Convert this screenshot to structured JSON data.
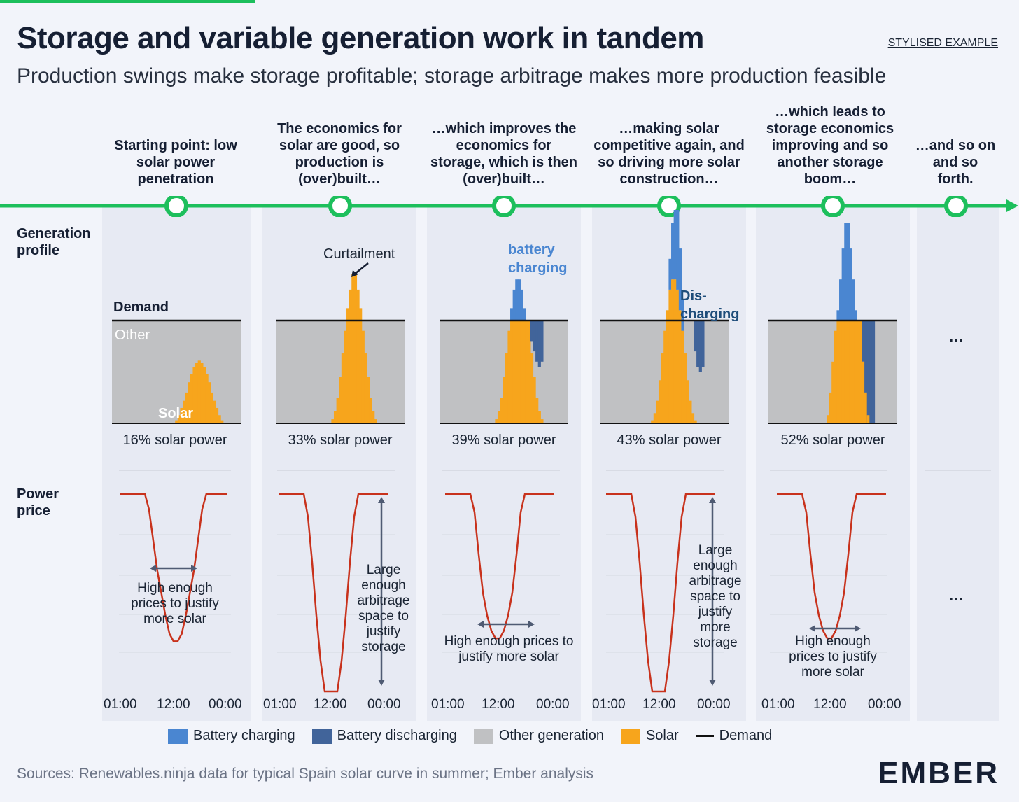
{
  "header": {
    "title": "Storage and variable generation work in tandem",
    "subtitle": "Production swings make storage profitable; storage arbitrage makes more production feasible",
    "tag": "STYLISED EXAMPLE"
  },
  "row_labels": {
    "generation": "Generation profile",
    "price": "Power price"
  },
  "steps": [
    "Starting point: low solar power penetration",
    "The economics for solar are good, so production is (over)built…",
    "…which improves the economics for storage, which is then (over)built…",
    "…making solar competitive again, and so driving more solar construction…",
    "…which leads to storage economics improving and so another storage boom…",
    "…and so on and so forth."
  ],
  "panel_labels": {
    "demand": "Demand",
    "other": "Other",
    "solar": "Solar",
    "curtailment": "Curtailment",
    "battery_charging": "battery charging",
    "discharging": "Dis-charging"
  },
  "ellipsis": "...",
  "annotations": {
    "p1": "High enough prices to justify more solar",
    "p2": "Large enough arbitrage space to justify storage",
    "p3": "High enough prices to justify more solar",
    "p4": "Large enough arbitrage space to justify more storage",
    "p5": "High enough prices to justify more solar"
  },
  "time_ticks": [
    "01:00",
    "12:00",
    "00:00"
  ],
  "legend": [
    "Battery charging",
    "Battery discharging",
    "Other generation",
    "Solar",
    "Demand"
  ],
  "colors": {
    "battery_charging": "#4a86d1",
    "battery_discharging": "#41649a",
    "other": "#c0c1c3",
    "solar": "#f7a51c",
    "demand": "#111111",
    "price": "#c8321c",
    "timeline": "#1dbf5c"
  },
  "source": "Sources: Renewables.ninja data for typical Spain solar curve in summer; Ember analysis",
  "logo": "EMBER",
  "chart_data": [
    {
      "type": "area",
      "title": "Starting point: low solar power penetration",
      "solar_share_label": "16% solar power",
      "demand": 100,
      "solar": [
        0,
        0,
        0,
        0,
        0,
        0,
        0,
        0,
        0,
        0,
        0,
        0,
        0,
        0,
        0,
        0,
        0,
        0,
        0,
        0,
        0,
        0,
        0,
        0,
        0,
        3,
        8,
        15,
        22,
        30,
        40,
        48,
        55,
        59,
        61,
        59,
        55,
        48,
        40,
        30,
        22,
        15,
        8,
        3,
        0,
        0,
        0,
        0,
        0,
        0,
        0
      ],
      "battery_charging": [],
      "battery_discharging": [],
      "price": [
        100,
        100,
        100,
        100,
        100,
        100,
        100,
        90,
        70,
        50,
        35,
        20,
        8,
        3,
        3,
        8,
        20,
        35,
        50,
        70,
        90,
        100,
        100,
        100,
        100,
        100,
        100
      ]
    },
    {
      "type": "area",
      "title": "The economics for solar are good, so production is (over)built…",
      "solar_share_label": "33% solar power",
      "demand": 100,
      "solar": [
        0,
        0,
        0,
        0,
        0,
        0,
        0,
        0,
        0,
        0,
        0,
        0,
        0,
        0,
        0,
        0,
        0,
        0,
        0,
        0,
        0,
        0,
        4,
        12,
        25,
        45,
        68,
        90,
        112,
        130,
        145,
        145,
        130,
        112,
        90,
        68,
        45,
        25,
        12,
        4,
        0,
        0,
        0,
        0,
        0,
        0,
        0,
        0,
        0,
        0,
        0
      ],
      "curtailment_visible": true,
      "battery_charging": [],
      "battery_discharging": [],
      "price": [
        100,
        100,
        100,
        100,
        100,
        100,
        100,
        85,
        55,
        20,
        -10,
        -30,
        -30,
        -30,
        -30,
        -10,
        20,
        55,
        85,
        100,
        100,
        100,
        100,
        100,
        100,
        100,
        100
      ]
    },
    {
      "type": "area",
      "title": "…which improves the economics for storage, which is then (over)built…",
      "solar_share_label": "39% solar power",
      "demand": 100,
      "solar": [
        0,
        0,
        0,
        0,
        0,
        0,
        0,
        0,
        0,
        0,
        0,
        0,
        0,
        0,
        0,
        0,
        0,
        0,
        0,
        0,
        0,
        0,
        4,
        12,
        25,
        45,
        68,
        90,
        100,
        100,
        100,
        100,
        100,
        100,
        100,
        100,
        68,
        45,
        25,
        12,
        4,
        0,
        0,
        0,
        0,
        0,
        0,
        0,
        0,
        0,
        0
      ],
      "battery_charging": [
        0,
        0,
        0,
        0,
        0,
        0,
        0,
        0,
        0,
        0,
        0,
        0,
        0,
        0,
        0,
        0,
        0,
        0,
        0,
        0,
        0,
        0,
        0,
        0,
        0,
        0,
        0,
        0,
        12,
        30,
        40,
        40,
        30,
        12,
        0,
        0,
        0,
        0,
        0,
        0,
        0,
        0,
        0,
        0,
        0,
        0,
        0,
        0,
        0,
        0,
        0
      ],
      "battery_discharging": [
        0,
        0,
        0,
        0,
        0,
        0,
        0,
        0,
        0,
        0,
        0,
        0,
        0,
        0,
        0,
        0,
        0,
        0,
        0,
        0,
        0,
        0,
        0,
        0,
        0,
        0,
        0,
        0,
        0,
        0,
        0,
        0,
        0,
        0,
        0,
        0,
        20,
        30,
        40,
        45,
        40,
        0,
        0,
        0,
        0,
        0,
        0,
        0,
        0,
        0,
        0
      ],
      "price": [
        100,
        100,
        100,
        100,
        100,
        100,
        100,
        88,
        60,
        35,
        20,
        10,
        5,
        5,
        10,
        20,
        35,
        60,
        88,
        100,
        100,
        100,
        100,
        100,
        100,
        100,
        100
      ]
    },
    {
      "type": "area",
      "title": "…making solar competitive again, and so driving more solar construction…",
      "solar_share_label": "43% solar power",
      "demand": 100,
      "solar": [
        0,
        0,
        0,
        0,
        0,
        0,
        0,
        0,
        0,
        0,
        0,
        0,
        0,
        0,
        0,
        0,
        0,
        0,
        0,
        0,
        3,
        10,
        22,
        42,
        68,
        90,
        110,
        130,
        140,
        140,
        130,
        110,
        90,
        68,
        42,
        22,
        10,
        3,
        0,
        0,
        0,
        0,
        0,
        0,
        0,
        0,
        0,
        0,
        0,
        0,
        0
      ],
      "battery_charging": [
        0,
        0,
        0,
        0,
        0,
        0,
        0,
        0,
        0,
        0,
        0,
        0,
        0,
        0,
        0,
        0,
        0,
        0,
        0,
        0,
        0,
        0,
        0,
        0,
        0,
        0,
        0,
        30,
        55,
        80,
        90,
        60,
        30,
        0,
        0,
        0,
        0,
        0,
        0,
        0,
        0,
        0,
        0,
        0,
        0,
        0,
        0,
        0,
        0,
        0,
        0
      ],
      "battery_discharging": [
        0,
        0,
        0,
        0,
        0,
        0,
        0,
        0,
        0,
        0,
        0,
        0,
        0,
        0,
        0,
        0,
        0,
        0,
        0,
        0,
        0,
        0,
        0,
        0,
        0,
        0,
        0,
        0,
        0,
        0,
        0,
        0,
        0,
        0,
        0,
        0,
        0,
        30,
        45,
        50,
        45,
        0,
        0,
        0,
        0,
        0,
        0,
        0,
        0,
        0,
        0
      ],
      "price": [
        100,
        100,
        100,
        100,
        100,
        100,
        100,
        85,
        55,
        20,
        -10,
        -30,
        -30,
        -30,
        -30,
        -10,
        20,
        55,
        85,
        100,
        100,
        100,
        100,
        100,
        100,
        100,
        100
      ]
    },
    {
      "type": "area",
      "title": "…which leads to storage economics improving and so another storage boom…",
      "solar_share_label": "52% solar power",
      "demand": 100,
      "solar": [
        0,
        0,
        0,
        0,
        0,
        0,
        0,
        0,
        0,
        0,
        0,
        0,
        0,
        0,
        0,
        0,
        0,
        0,
        0,
        0,
        0,
        0,
        0,
        8,
        30,
        60,
        90,
        100,
        100,
        100,
        100,
        100,
        100,
        100,
        100,
        100,
        100,
        60,
        30,
        8,
        0,
        0,
        0,
        0,
        0,
        0,
        0,
        0,
        0,
        0,
        0
      ],
      "battery_charging": [
        0,
        0,
        0,
        0,
        0,
        0,
        0,
        0,
        0,
        0,
        0,
        0,
        0,
        0,
        0,
        0,
        0,
        0,
        0,
        0,
        0,
        0,
        0,
        0,
        0,
        0,
        0,
        10,
        40,
        70,
        95,
        95,
        70,
        40,
        10,
        0,
        0,
        0,
        0,
        0,
        0,
        0,
        0,
        0,
        0,
        0,
        0,
        0,
        0,
        0,
        0
      ],
      "battery_discharging": [
        0,
        0,
        0,
        0,
        0,
        0,
        0,
        0,
        0,
        0,
        0,
        0,
        0,
        0,
        0,
        0,
        0,
        0,
        0,
        0,
        0,
        0,
        0,
        0,
        0,
        0,
        0,
        0,
        0,
        0,
        0,
        0,
        0,
        0,
        0,
        0,
        0,
        40,
        70,
        100,
        100,
        100,
        0,
        0,
        0,
        0,
        0,
        0,
        0,
        0,
        0
      ],
      "price": [
        100,
        100,
        100,
        100,
        100,
        100,
        100,
        88,
        60,
        35,
        20,
        10,
        5,
        5,
        10,
        20,
        35,
        60,
        88,
        100,
        100,
        100,
        100,
        100,
        100,
        100,
        100
      ]
    }
  ]
}
